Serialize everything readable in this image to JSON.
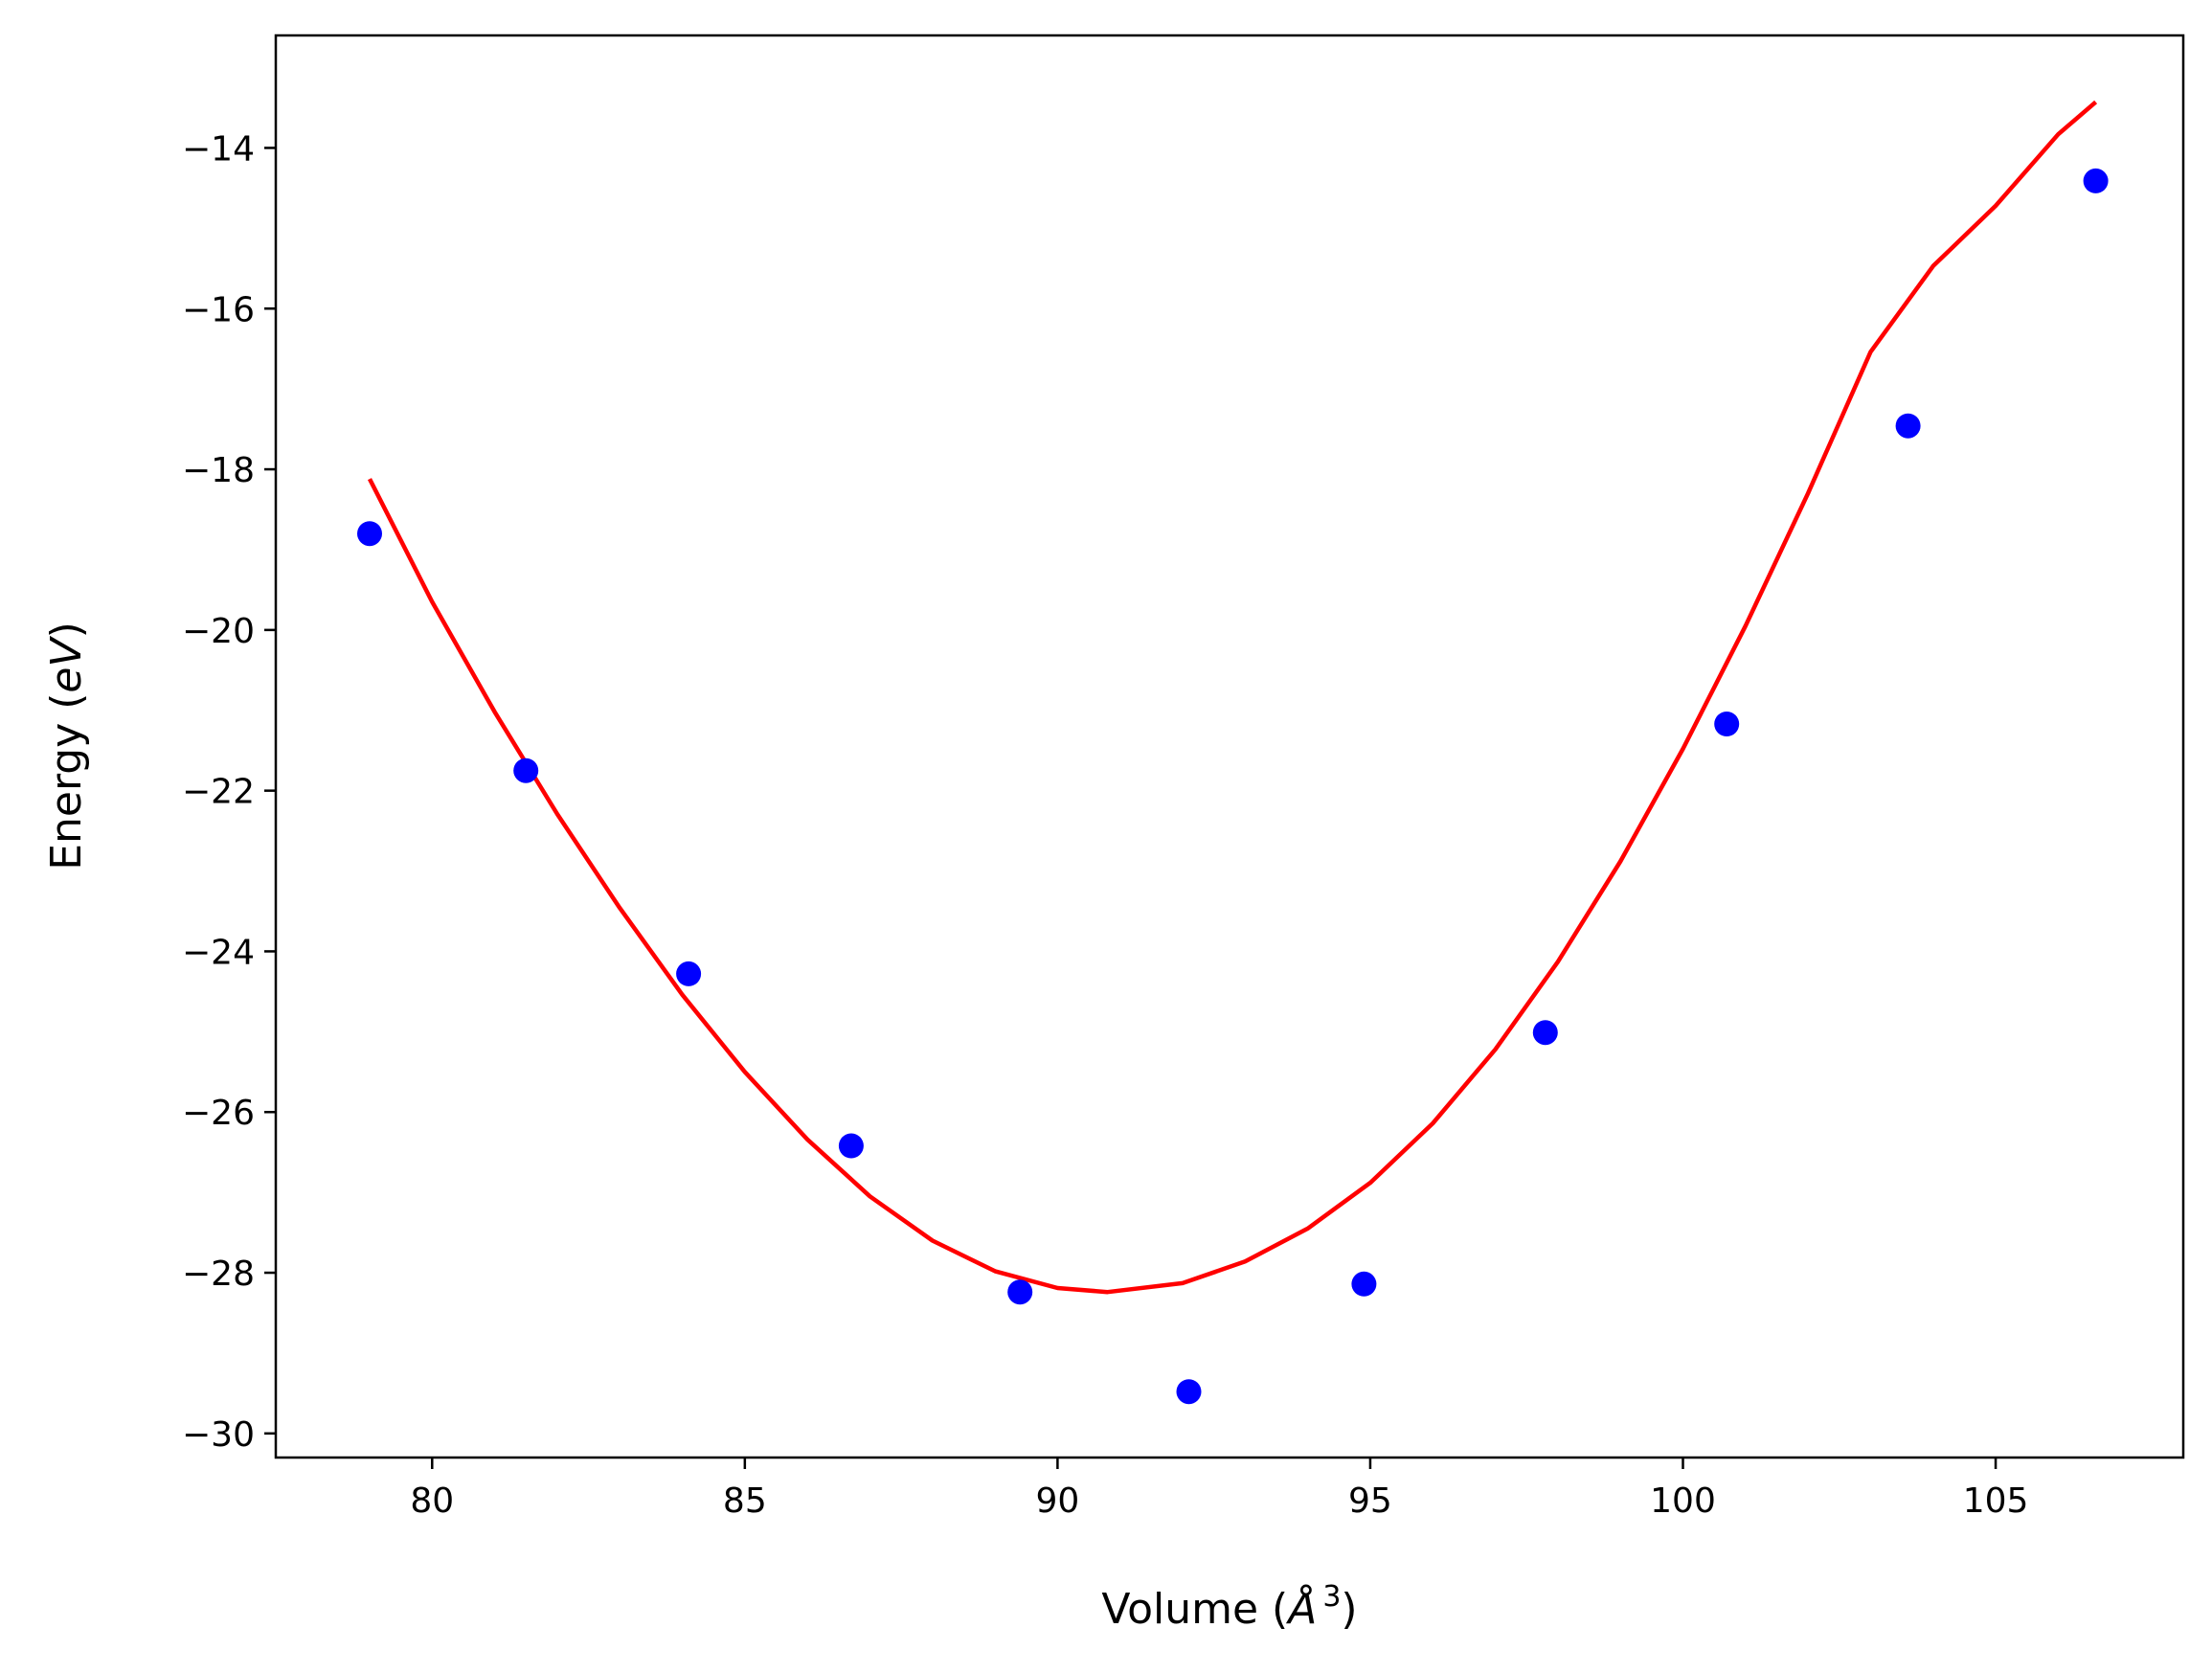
{
  "chart_data": {
    "type": "scatter",
    "title": "",
    "xlabel": {
      "prefix": "Volume (",
      "symbol": "Å",
      "superscript": "3",
      "suffix": ")"
    },
    "ylabel": {
      "prefix": "Energy (",
      "unit": "eV",
      "suffix": ")"
    },
    "xlim": [
      77.5,
      108
    ],
    "ylim": [
      -30.3,
      -12.6
    ],
    "xticks": [
      80,
      85,
      90,
      95,
      100,
      105
    ],
    "yticks": [
      -30,
      -28,
      -26,
      -24,
      -22,
      -20,
      -18,
      -16,
      -14
    ],
    "xtick_labels": [
      "80",
      "85",
      "90",
      "95",
      "100",
      "105"
    ],
    "ytick_labels": [
      "−30",
      "−28",
      "−26",
      "−24",
      "−22",
      "−20",
      "−18",
      "−16",
      "−14"
    ],
    "grid": false,
    "series": [
      {
        "kind": "points",
        "color": "#0000ff",
        "x": [
          79.0,
          81.5,
          84.1,
          86.7,
          89.4,
          92.1,
          94.9,
          97.8,
          100.7,
          103.6,
          106.6
        ],
        "y": [
          -18.8,
          -21.75,
          -24.28,
          -26.42,
          -28.24,
          -29.48,
          -28.14,
          -25.01,
          -21.17,
          -17.46,
          -14.41
        ]
      },
      {
        "kind": "fit-curve",
        "color": "#ff0000",
        "x": [
          79.0,
          80.0,
          81.0,
          82.0,
          83.0,
          84.0,
          85.0,
          86.0,
          87.0,
          88.0,
          89.0,
          90.0,
          90.8,
          92.0,
          93.0,
          94.0,
          95.0,
          96.0,
          97.0,
          98.0,
          99.0,
          100.0,
          101.0,
          102.0,
          103.0,
          104.0,
          105.0,
          106.0,
          106.6
        ],
        "y": [
          -18.12,
          -19.65,
          -21.02,
          -22.29,
          -23.46,
          -24.54,
          -25.5,
          -26.34,
          -27.05,
          -27.6,
          -27.98,
          -28.19,
          -28.24,
          -28.13,
          -27.86,
          -27.45,
          -26.88,
          -26.14,
          -25.22,
          -24.13,
          -22.88,
          -21.48,
          -19.95,
          -18.3,
          -16.54,
          -15.47,
          -14.72,
          -13.83,
          -13.43
        ]
      }
    ]
  }
}
